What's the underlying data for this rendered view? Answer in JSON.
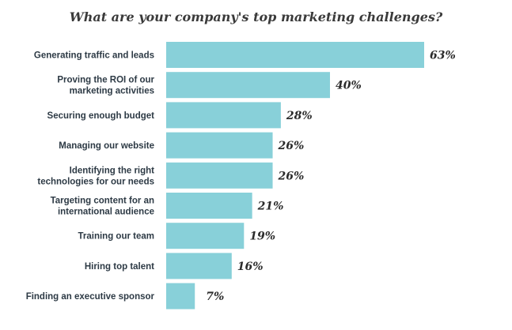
{
  "chart_data": {
    "type": "bar",
    "orientation": "horizontal",
    "title": "What are your company's top marketing challenges?",
    "categories": [
      [
        "Generating traffic and leads"
      ],
      [
        "Proving the ROI of our",
        "marketing activities"
      ],
      [
        "Securing enough budget"
      ],
      [
        "Managing our website"
      ],
      [
        "Identifying the right",
        "technologies for our needs"
      ],
      [
        "Targeting content for an",
        "international audience"
      ],
      [
        "Training our team"
      ],
      [
        "Hiring top talent"
      ],
      [
        "Finding an executive sponsor"
      ]
    ],
    "values": [
      63,
      40,
      28,
      26,
      26,
      21,
      19,
      16,
      7
    ],
    "value_labels": [
      "63%",
      "40%",
      "28%",
      "26%",
      "26%",
      "21%",
      "19%",
      "16%",
      "7%"
    ],
    "xlim": [
      0,
      63
    ],
    "grid": false,
    "bar_color": "#88d0d9"
  }
}
